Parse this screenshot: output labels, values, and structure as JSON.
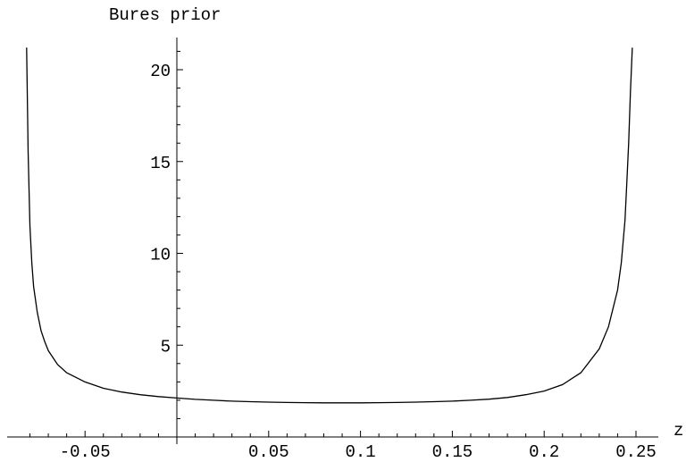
{
  "chart_data": {
    "type": "line",
    "title": "",
    "xlabel": "z",
    "ylabel": "Bures prior",
    "xlim": [
      -0.0833,
      0.25
    ],
    "ylim": [
      0,
      21.2
    ],
    "x_ticks": [
      {
        "value": -0.05,
        "label": "-0.05"
      },
      {
        "value": 0.05,
        "label": "0.05"
      },
      {
        "value": 0.1,
        "label": "0.1"
      },
      {
        "value": 0.15,
        "label": "0.15"
      },
      {
        "value": 0.2,
        "label": "0.2"
      },
      {
        "value": 0.25,
        "label": "0.25"
      }
    ],
    "y_ticks": [
      {
        "value": 5,
        "label": "5"
      },
      {
        "value": 10,
        "label": "10"
      },
      {
        "value": 15,
        "label": "15"
      },
      {
        "value": 20,
        "label": "20"
      }
    ],
    "grid": false,
    "series": [
      {
        "x": [
          -0.0818,
          -0.081,
          -0.08,
          -0.079,
          -0.078,
          -0.076,
          -0.074,
          -0.072,
          -0.07,
          -0.065,
          -0.06,
          -0.05,
          -0.04,
          -0.03,
          -0.02,
          -0.01,
          0,
          0.01,
          0.02,
          0.03,
          0.04,
          0.05,
          0.06,
          0.07,
          0.08,
          0.09,
          0.1,
          0.11,
          0.12,
          0.13,
          0.14,
          0.15,
          0.16,
          0.17,
          0.18,
          0.19,
          0.2,
          0.21,
          0.22,
          0.23,
          0.235,
          0.24,
          0.242,
          0.244,
          0.245,
          0.246,
          0.247,
          0.248
        ],
        "y": [
          21.2,
          15.5,
          11.5,
          9.5,
          8.2,
          6.8,
          5.8,
          5.2,
          4.7,
          3.95,
          3.5,
          3.0,
          2.65,
          2.45,
          2.3,
          2.2,
          2.12,
          2.05,
          2.0,
          1.95,
          1.92,
          1.9,
          1.88,
          1.87,
          1.86,
          1.86,
          1.86,
          1.87,
          1.88,
          1.9,
          1.92,
          1.95,
          2.0,
          2.06,
          2.15,
          2.3,
          2.5,
          2.85,
          3.5,
          4.8,
          6.0,
          8.0,
          9.5,
          11.8,
          13.8,
          16.0,
          18.8,
          21.2
        ]
      }
    ]
  }
}
